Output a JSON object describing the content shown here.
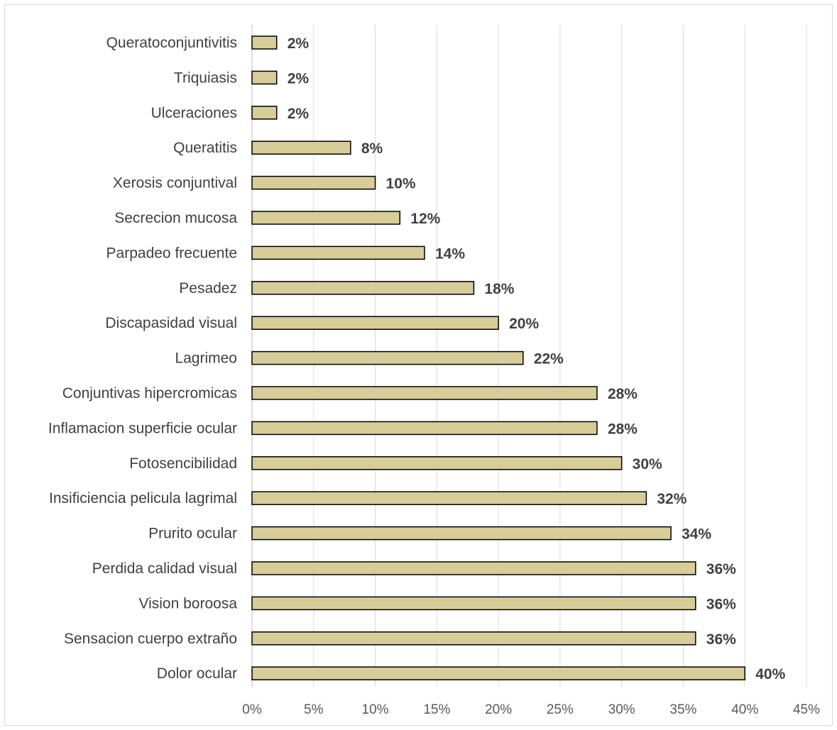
{
  "chart_data": {
    "type": "bar",
    "orientation": "horizontal",
    "categories": [
      "Queratoconjuntivitis",
      "Triquiasis",
      "Ulceraciones",
      "Queratitis",
      "Xerosis conjuntival",
      "Secrecion mucosa",
      "Parpadeo frecuente",
      "Pesadez",
      "Discapasidad visual",
      "Lagrimeo",
      "Conjuntivas hipercromicas",
      "Inflamacion superficie ocular",
      "Fotosencibilidad",
      "Insificiencia pelicula lagrimal",
      "Prurito ocular",
      "Perdida calidad visual",
      "Vision boroosa",
      "Sensacion cuerpo extraño",
      "Dolor ocular"
    ],
    "values": [
      2,
      2,
      2,
      8,
      10,
      12,
      14,
      18,
      20,
      22,
      28,
      28,
      30,
      32,
      34,
      36,
      36,
      36,
      40
    ],
    "value_labels": [
      "2%",
      "2%",
      "2%",
      "8%",
      "10%",
      "12%",
      "14%",
      "18%",
      "20%",
      "22%",
      "28%",
      "28%",
      "30%",
      "32%",
      "34%",
      "36%",
      "36%",
      "36%",
      "40%"
    ],
    "xlim": [
      0,
      45
    ],
    "xticks": [
      "0%",
      "5%",
      "10%",
      "15%",
      "20%",
      "25%",
      "30%",
      "35%",
      "40%",
      "45%"
    ],
    "title": "",
    "xlabel": "",
    "ylabel": "",
    "grid": "vertical",
    "legend": "none",
    "colors": {
      "bar_fill": "#d6cd99",
      "bar_stroke": "#000000",
      "grid": "#d9d9d9",
      "axis": "#bfbfbf",
      "text": "#404040"
    }
  }
}
